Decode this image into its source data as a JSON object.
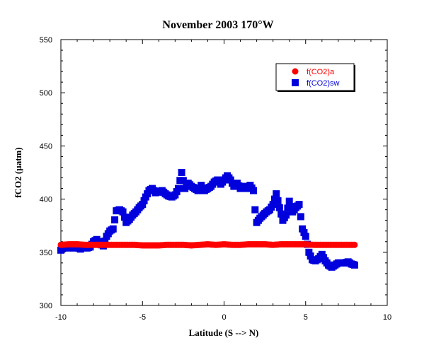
{
  "chart_data": {
    "type": "scatter",
    "title": "November 2003 170°W",
    "xlabel": "Latitude (S --> N)",
    "ylabel": "fCO2 (µatm)",
    "xlim": [
      -10,
      10
    ],
    "ylim": [
      300,
      550
    ],
    "xticks": [
      -10,
      -5,
      0,
      5,
      10
    ],
    "yticks": [
      300,
      350,
      400,
      450,
      500,
      550
    ],
    "grid": false,
    "legend_position": "top-right",
    "series": [
      {
        "name": "f(CO2)a",
        "marker": "circle",
        "color": "#ff0000",
        "text_color": "#ff0000",
        "x": [
          -10.0,
          -9.5,
          -9.0,
          -8.5,
          -8.0,
          -7.5,
          -7.0,
          -6.5,
          -6.0,
          -5.5,
          -5.0,
          -4.5,
          -4.0,
          -3.5,
          -3.0,
          -2.5,
          -2.0,
          -1.5,
          -1.0,
          -0.5,
          0.0,
          0.5,
          1.0,
          1.5,
          2.0,
          2.5,
          3.0,
          3.5,
          4.0,
          4.5,
          5.0,
          5.5,
          6.0,
          6.5,
          7.0,
          7.5,
          8.0
        ],
        "y": [
          357,
          357.5,
          357.5,
          357,
          357,
          357,
          357,
          357,
          357,
          357,
          356.5,
          356.5,
          356.5,
          357,
          357,
          357,
          356.5,
          357,
          357.5,
          357,
          357.5,
          357,
          357,
          357.5,
          357.5,
          357.5,
          357,
          357.5,
          357.5,
          357.5,
          357.5,
          357,
          357,
          357,
          357,
          357,
          357
        ]
      },
      {
        "name": "f(CO2)sw",
        "marker": "square",
        "color": "#0000dd",
        "text_color": "#0000dd",
        "x": [
          -10.0,
          -9.8,
          -9.6,
          -9.4,
          -9.2,
          -9.0,
          -8.8,
          -8.6,
          -8.4,
          -8.2,
          -8.0,
          -7.8,
          -7.6,
          -7.4,
          -7.2,
          -7.0,
          -6.8,
          -6.6,
          -6.4,
          -6.2,
          -6.0,
          -5.8,
          -5.6,
          -5.4,
          -5.2,
          -5.0,
          -4.8,
          -4.6,
          -4.4,
          -4.2,
          -4.0,
          -3.8,
          -3.6,
          -3.4,
          -3.2,
          -3.0,
          -2.8,
          -2.6,
          -2.4,
          -2.2,
          -2.0,
          -1.8,
          -1.6,
          -1.4,
          -1.2,
          -1.0,
          -0.8,
          -0.6,
          -0.4,
          -0.2,
          0.0,
          0.2,
          0.4,
          0.6,
          0.8,
          1.0,
          1.2,
          1.4,
          1.6,
          1.8,
          1.9,
          2.0,
          2.2,
          2.4,
          2.6,
          2.8,
          3.0,
          3.2,
          3.4,
          3.6,
          3.8,
          4.0,
          4.2,
          4.4,
          4.6,
          4.8,
          5.0,
          5.2,
          5.4,
          5.6,
          5.8,
          6.0,
          6.2,
          6.4,
          6.6,
          6.8,
          7.0,
          7.2,
          7.4,
          7.6,
          7.8,
          8.0
        ],
        "y": [
          352,
          355,
          354,
          355,
          354,
          355,
          353,
          356,
          354,
          355,
          360,
          362,
          358,
          356,
          365,
          370,
          372,
          389,
          390,
          388,
          378,
          381,
          385,
          388,
          392,
          395,
          402,
          408,
          410,
          406,
          407,
          408,
          405,
          403,
          402,
          404,
          410,
          425,
          410,
          415,
          412,
          410,
          408,
          413,
          408,
          410,
          412,
          416,
          418,
          414,
          418,
          422,
          418,
          412,
          415,
          410,
          412,
          410,
          413,
          408,
          390,
          378,
          382,
          385,
          388,
          390,
          395,
          405,
          392,
          380,
          385,
          398,
          388,
          392,
          395,
          372,
          365,
          350,
          343,
          342,
          344,
          348,
          342,
          338,
          336,
          338,
          340,
          340,
          340,
          341,
          339,
          338
        ]
      }
    ]
  }
}
